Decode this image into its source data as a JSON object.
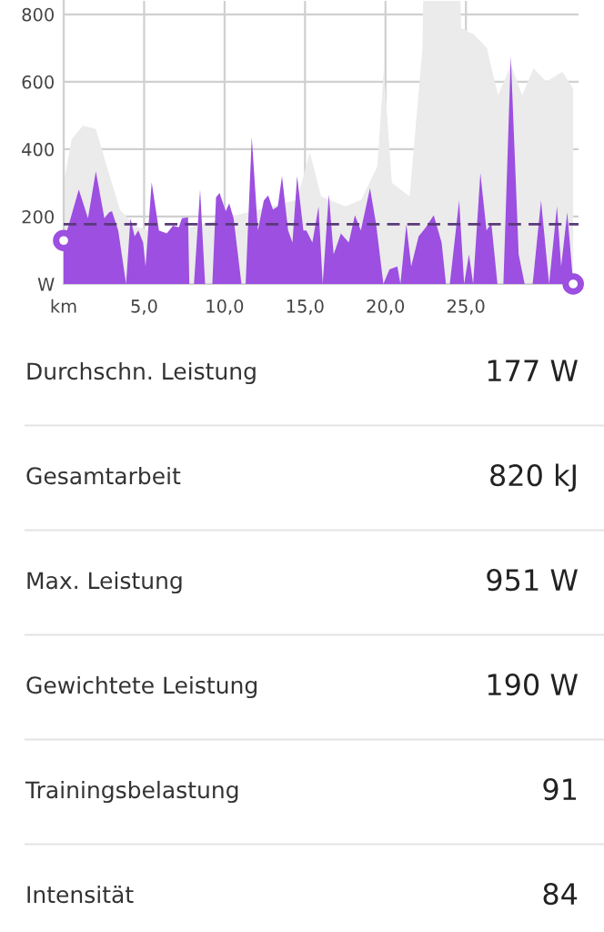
{
  "chart_data": {
    "type": "area",
    "xlim": [
      0,
      32
    ],
    "ylim": [
      0,
      840
    ],
    "xticks": [
      {
        "value": 0,
        "label": "km"
      },
      {
        "value": 5,
        "label": "5,0"
      },
      {
        "value": 10,
        "label": "10,0"
      },
      {
        "value": 15,
        "label": "15,0"
      },
      {
        "value": 20,
        "label": "20,0"
      },
      {
        "value": 25,
        "label": "25,0"
      }
    ],
    "yticks": [
      {
        "value": 0,
        "label": "W"
      },
      200,
      400,
      600,
      800
    ],
    "grid": true,
    "legend": false,
    "series": [
      {
        "color": "#ebebeb",
        "x": [
          0,
          0.5,
          1.2,
          2.0,
          2.8,
          3.5,
          4.5,
          6,
          8,
          14.5,
          15.3,
          16,
          17.5,
          18.5,
          19.5,
          19.9,
          20.4,
          21.5,
          22.3,
          22.6,
          24.3,
          24.7,
          25.5,
          26.3,
          27,
          27.8,
          28.5,
          29.2,
          30,
          31,
          31.67
        ],
        "values": [
          300,
          430,
          470,
          460,
          330,
          220,
          170,
          150,
          170,
          250,
          390,
          260,
          230,
          250,
          350,
          640,
          300,
          260,
          700,
          null,
          null,
          760,
          740,
          700,
          560,
          650,
          560,
          640,
          600,
          630,
          580
        ]
      },
      {
        "color": "#9c4fe0",
        "x": [
          0.0,
          0.94,
          1.51,
          2.0,
          2.53,
          2.83,
          3.0,
          3.39,
          3.88,
          4.15,
          4.41,
          4.64,
          4.94,
          5.09,
          5.47,
          5.92,
          6.41,
          6.79,
          7.16,
          7.35,
          7.73,
          7.81,
          8.1,
          8.48,
          8.79,
          9.24,
          9.47,
          9.69,
          10.07,
          10.29,
          10.56,
          11.05,
          11.31,
          11.69,
          12.07,
          12.44,
          12.71,
          13.01,
          13.31,
          13.57,
          13.95,
          14.22,
          14.51,
          14.9,
          15.08,
          15.46,
          15.84,
          16.1,
          16.48,
          16.78,
          17.23,
          17.72,
          18.1,
          18.47,
          19.04,
          19.42,
          19.87,
          20.25,
          20.74,
          20.93,
          21.3,
          21.6,
          22.06,
          22.51,
          23.0,
          23.49,
          23.76,
          24.0,
          24.58,
          24.89,
          25.19,
          25.45,
          25.9,
          26.28,
          26.58,
          26.96,
          27.33,
          27.79,
          28.28,
          28.65,
          29.15,
          29.67,
          30.17,
          30.66,
          30.92,
          31.3,
          31.67
        ],
        "values": [
          123,
          280,
          195,
          334,
          195,
          213,
          216,
          159,
          0,
          195,
          141,
          159,
          123,
          52,
          302,
          159,
          150,
          173,
          168,
          195,
          198,
          0,
          0,
          280,
          0,
          0,
          257,
          270,
          216,
          239,
          195,
          0,
          0,
          436,
          159,
          248,
          263,
          221,
          230,
          320,
          159,
          123,
          320,
          159,
          159,
          123,
          230,
          0,
          266,
          88,
          150,
          123,
          204,
          159,
          284,
          177,
          0,
          43,
          52,
          0,
          177,
          52,
          141,
          168,
          204,
          123,
          0,
          0,
          248,
          0,
          88,
          0,
          329,
          159,
          180,
          0,
          0,
          677,
          88,
          0,
          0,
          248,
          0,
          230,
          52,
          213,
          0
        ]
      },
      {
        "type": "scatter",
        "color": "#9c4fe0",
        "marker": "circle",
        "x": [
          0,
          31.67
        ],
        "values": [
          129,
          0
        ]
      }
    ],
    "ref_lines": [
      {
        "axis": "y",
        "value": 177,
        "color": "#5a3a7a",
        "line_style": "dashed"
      }
    ],
    "annotations": [
      "Durchschn. Leistung",
      "177 W",
      "Gesamtarbeit",
      "820 kJ",
      "Max. Leistung",
      "951 W",
      "Gewichtete Leistung",
      "190 W",
      "Trainingsbelastung",
      "91",
      "Intensität",
      "84"
    ]
  }
}
